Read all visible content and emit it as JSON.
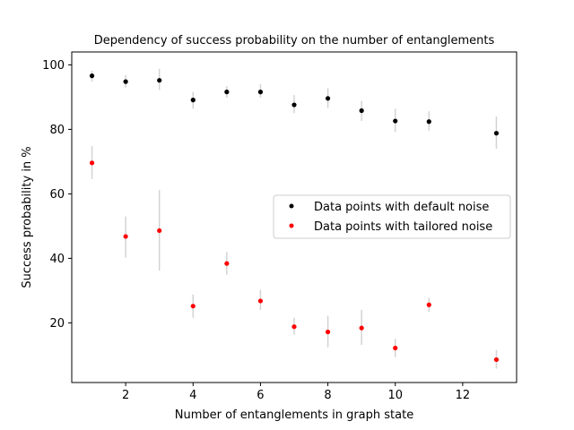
{
  "chart_data": {
    "type": "scatter",
    "title": "Dependency of success probability on the number of entanglements",
    "xlabel": "Number of entanglements in graph state",
    "ylabel": "Success probability in %",
    "xlim": [
      0.4,
      13.6
    ],
    "ylim": [
      1.5,
      104
    ],
    "xticks": [
      2,
      4,
      6,
      8,
      10,
      12
    ],
    "yticks": [
      20,
      40,
      60,
      80,
      100
    ],
    "grid": false,
    "legend_position": "center-right",
    "series": [
      {
        "name": "Data points with default noise",
        "color": "#000000",
        "errorbar_color": "#d3d3d3",
        "points": [
          {
            "x": 1,
            "y": 96.6,
            "low": 94.8,
            "high": 98.2
          },
          {
            "x": 2,
            "y": 94.8,
            "low": 93.0,
            "high": 96.8
          },
          {
            "x": 3,
            "y": 95.2,
            "low": 92.2,
            "high": 98.8
          },
          {
            "x": 4,
            "y": 89.1,
            "low": 86.4,
            "high": 91.6
          },
          {
            "x": 5,
            "y": 91.6,
            "low": 89.8,
            "high": 93.4
          },
          {
            "x": 6,
            "y": 91.6,
            "low": 89.8,
            "high": 94.0
          },
          {
            "x": 7,
            "y": 87.6,
            "low": 85.0,
            "high": 90.6
          },
          {
            "x": 8,
            "y": 89.6,
            "low": 86.6,
            "high": 92.8
          },
          {
            "x": 9,
            "y": 85.8,
            "low": 82.6,
            "high": 88.8
          },
          {
            "x": 10,
            "y": 82.6,
            "low": 79.2,
            "high": 86.4
          },
          {
            "x": 11,
            "y": 82.4,
            "low": 79.6,
            "high": 85.6
          },
          {
            "x": 13,
            "y": 78.8,
            "low": 74.0,
            "high": 84.0
          }
        ]
      },
      {
        "name": "Data points with tailored noise",
        "color": "#ff0000",
        "errorbar_color": "#d3d3d3",
        "points": [
          {
            "x": 1,
            "y": 69.6,
            "low": 64.6,
            "high": 74.8
          },
          {
            "x": 2,
            "y": 46.8,
            "low": 40.2,
            "high": 53.0
          },
          {
            "x": 3,
            "y": 48.6,
            "low": 36.2,
            "high": 61.2
          },
          {
            "x": 4,
            "y": 25.2,
            "low": 21.6,
            "high": 28.8
          },
          {
            "x": 5,
            "y": 38.4,
            "low": 35.0,
            "high": 42.0
          },
          {
            "x": 6,
            "y": 26.8,
            "low": 24.0,
            "high": 30.2
          },
          {
            "x": 7,
            "y": 18.8,
            "low": 16.4,
            "high": 21.6
          },
          {
            "x": 8,
            "y": 17.2,
            "low": 12.4,
            "high": 22.2
          },
          {
            "x": 9,
            "y": 18.4,
            "low": 13.2,
            "high": 24.0
          },
          {
            "x": 10,
            "y": 12.2,
            "low": 9.4,
            "high": 15.0
          },
          {
            "x": 11,
            "y": 25.6,
            "low": 23.4,
            "high": 27.8
          },
          {
            "x": 13,
            "y": 8.6,
            "low": 5.8,
            "high": 11.6
          }
        ]
      }
    ]
  }
}
